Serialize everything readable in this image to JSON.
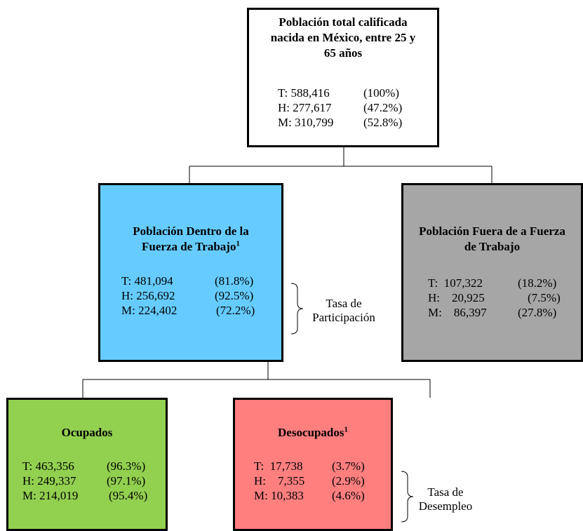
{
  "colors": {
    "top": "#ffffff",
    "inside": "#66ccff",
    "outside": "#a6a6a6",
    "employed": "#92d050",
    "unemployed": "#ff7f7f"
  },
  "top": {
    "title_lines": [
      "Población  total calificada",
      "nacida  en México, entre 25 y",
      "65 años"
    ],
    "rows": [
      {
        "label": "T: 588,416",
        "pct": "(100%)"
      },
      {
        "label": "H: 277,617",
        "pct": "(47.2%)"
      },
      {
        "label": "M: 310,799",
        "pct": "(52.8%)"
      }
    ]
  },
  "inside": {
    "title_lines": [
      "Población  Dentro de la",
      "Fuerza de Trabajo"
    ],
    "title_sup": "1",
    "rows": [
      {
        "label": "T: 481,094",
        "pct": "(81.8%)"
      },
      {
        "label": "H: 256,692",
        "pct": "(92.5%)"
      },
      {
        "label": "M: 224,402",
        "pct": "(72.2%)"
      }
    ]
  },
  "outside": {
    "title_lines": [
      "Población  Fuera de a Fuerza",
      "de Trabajo"
    ],
    "rows": [
      {
        "label": "T:  107,322",
        "pct": "(18.2%)"
      },
      {
        "label": "H:    20,925",
        "pct": "(7.5%)"
      },
      {
        "label": "M:    86,397",
        "pct": "(27.8%)"
      }
    ]
  },
  "employed": {
    "title_lines": [
      "Ocupados"
    ],
    "rows": [
      {
        "label": "T: 463,356",
        "pct": "(96.3%)"
      },
      {
        "label": "H: 249,337",
        "pct": "(97.1%)"
      },
      {
        "label": "M: 214,019",
        "pct": "(95.4%)"
      }
    ]
  },
  "unemployed": {
    "title_lines": [
      "Desocupados"
    ],
    "title_sup": "1",
    "rows": [
      {
        "label": "T:  17,738",
        "pct": "(3.7%)"
      },
      {
        "label": "H:    7,355",
        "pct": "(2.9%)"
      },
      {
        "label": "M: 10,383",
        "pct": "(4.6%)"
      }
    ]
  },
  "participation_note": [
    "Tasa de",
    "Participación"
  ],
  "unemployment_note": [
    "Tasa de",
    "Desempleo"
  ]
}
